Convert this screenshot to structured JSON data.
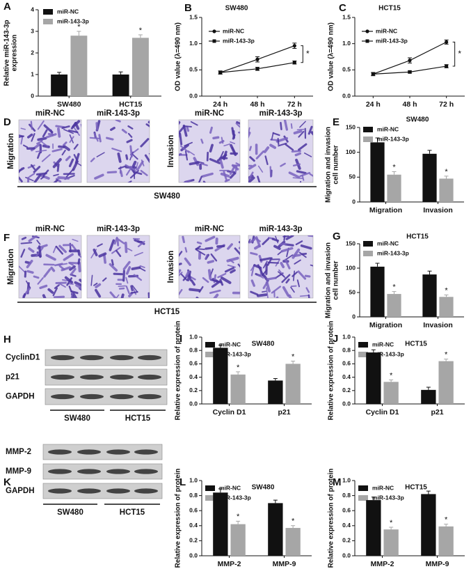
{
  "chart_data": [
    {
      "type": "bar",
      "panel": "A",
      "ylabel": [
        "Relative miR-143-3p",
        "expression"
      ],
      "categories": [
        "SW480",
        "HCT15"
      ],
      "series": [
        {
          "name": "miR-NC",
          "color": "#111111",
          "values": [
            1.0,
            1.0
          ],
          "errors": [
            0.1,
            0.12
          ]
        },
        {
          "name": "miR-143-3p",
          "color": "#a6a6a6",
          "values": [
            2.8,
            2.7
          ],
          "errors": [
            0.2,
            0.14
          ],
          "significance": [
            "*",
            "*"
          ]
        }
      ],
      "ylim": [
        0,
        4
      ],
      "yticks": [
        0,
        1,
        2,
        3,
        4
      ]
    },
    {
      "type": "line",
      "panel": "B",
      "title": "SW480",
      "ylabel": [
        "OD value (λ=490 nm)"
      ],
      "categories": [
        "24 h",
        "48 h",
        "72 h"
      ],
      "series": [
        {
          "name": "miR-NC",
          "color": "#111111",
          "values": [
            0.45,
            0.7,
            0.96
          ],
          "errors": [
            0.03,
            0.05,
            0.05
          ]
        },
        {
          "name": "miR-143-3p",
          "color": "#111111",
          "values": [
            0.45,
            0.52,
            0.64
          ],
          "errors": [
            0.03,
            0.03,
            0.03
          ]
        }
      ],
      "annotation": "*",
      "ylim": [
        0,
        1.5
      ],
      "yticks": [
        {
          "value": 0,
          "label": "0.0"
        },
        0.5,
        {
          "value": 1,
          "label": "1.0"
        },
        1.5
      ]
    },
    {
      "type": "line",
      "panel": "C",
      "title": "HCT15",
      "ylabel": [
        "OD value (λ=490 nm)"
      ],
      "categories": [
        "24 h",
        "48 h",
        "72 h"
      ],
      "series": [
        {
          "name": "miR-NC",
          "color": "#111111",
          "values": [
            0.42,
            0.68,
            1.03
          ],
          "errors": [
            0.03,
            0.05,
            0.04
          ]
        },
        {
          "name": "miR-143-3p",
          "color": "#111111",
          "values": [
            0.42,
            0.46,
            0.57
          ],
          "errors": [
            0.03,
            0.02,
            0.03
          ]
        }
      ],
      "annotation": "*",
      "ylim": [
        0,
        1.5
      ],
      "yticks": [
        {
          "value": 0,
          "label": "0.0"
        },
        0.5,
        {
          "value": 1,
          "label": "1.0"
        },
        1.5
      ]
    },
    {
      "type": "bar",
      "panel": "E",
      "title": "SW480",
      "ylabel": [
        "Migration and invasion",
        "cell number"
      ],
      "categories": [
        "Migration",
        "Invasion"
      ],
      "series": [
        {
          "name": "miR-NC",
          "color": "#111111",
          "values": [
            120,
            97
          ],
          "errors": [
            9,
            7
          ]
        },
        {
          "name": "miR-143-3p",
          "color": "#a6a6a6",
          "values": [
            55,
            47
          ],
          "errors": [
            6,
            5
          ],
          "significance": [
            "*",
            "*"
          ]
        }
      ],
      "ylim": [
        0,
        150
      ],
      "yticks": [
        0,
        50,
        100,
        150
      ]
    },
    {
      "type": "bar",
      "panel": "G",
      "title": "HCT15",
      "ylabel": [
        "Migration and invasion",
        "cell number"
      ],
      "categories": [
        "Migration",
        "Invasion"
      ],
      "series": [
        {
          "name": "miR-NC",
          "color": "#111111",
          "values": [
            103,
            87
          ],
          "errors": [
            7,
            7
          ]
        },
        {
          "name": "miR-143-3p",
          "color": "#a6a6a6",
          "values": [
            47,
            41
          ],
          "errors": [
            5,
            4
          ],
          "significance": [
            "*",
            "*"
          ]
        }
      ],
      "ylim": [
        0,
        150
      ],
      "yticks": [
        0,
        50,
        100,
        150
      ]
    },
    {
      "type": "bar",
      "panel": "I",
      "title": "SW480",
      "ylabel": [
        "Relative expression of protein"
      ],
      "categories": [
        "Cyclin D1",
        "p21"
      ],
      "series": [
        {
          "name": "miR-NC",
          "color": "#111111",
          "values": [
            0.84,
            0.35
          ],
          "errors": [
            0.04,
            0.03
          ]
        },
        {
          "name": "miR-143-3p",
          "color": "#a6a6a6",
          "values": [
            0.44,
            0.6
          ],
          "errors": [
            0.04,
            0.04
          ],
          "significance": [
            "*",
            "*"
          ]
        }
      ],
      "ylim": [
        0,
        1
      ],
      "yticks": [
        {
          "value": 0,
          "label": "0.0"
        },
        0.2,
        0.4,
        0.6,
        0.8,
        {
          "value": 1,
          "label": "1.0"
        }
      ]
    },
    {
      "type": "bar",
      "panel": "J",
      "title": "HCT15",
      "ylabel": [
        "Relative expression of protein"
      ],
      "categories": [
        "Cyclin D1",
        "p21"
      ],
      "series": [
        {
          "name": "miR-NC",
          "color": "#111111",
          "values": [
            0.77,
            0.21
          ],
          "errors": [
            0.04,
            0.04
          ]
        },
        {
          "name": "miR-143-3p",
          "color": "#a6a6a6",
          "values": [
            0.33,
            0.64
          ],
          "errors": [
            0.03,
            0.03
          ],
          "significance": [
            "*",
            "*"
          ]
        }
      ],
      "ylim": [
        0,
        1
      ],
      "yticks": [
        {
          "value": 0,
          "label": "0.0"
        },
        0.2,
        0.4,
        0.6,
        0.8,
        {
          "value": 1,
          "label": "1.0"
        }
      ]
    },
    {
      "type": "bar",
      "panel": "L",
      "title": "SW480",
      "ylabel": [
        "Relative expression of protein"
      ],
      "categories": [
        "MMP-2",
        "MMP-9"
      ],
      "series": [
        {
          "name": "miR-NC",
          "color": "#111111",
          "values": [
            0.84,
            0.7
          ],
          "errors": [
            0.05,
            0.04
          ]
        },
        {
          "name": "miR-143-3p",
          "color": "#a6a6a6",
          "values": [
            0.42,
            0.37
          ],
          "errors": [
            0.04,
            0.03
          ],
          "significance": [
            "*",
            "*"
          ]
        }
      ],
      "ylim": [
        0,
        1
      ],
      "yticks": [
        {
          "value": 0,
          "label": "0.0"
        },
        0.2,
        0.4,
        0.6,
        0.8,
        {
          "value": 1,
          "label": "1.0"
        }
      ]
    },
    {
      "type": "bar",
      "panel": "M",
      "title": "HCT15",
      "ylabel": [
        "Relative expression of protein"
      ],
      "categories": [
        "MMP-2",
        "MMP-9"
      ],
      "series": [
        {
          "name": "miR-NC",
          "color": "#111111",
          "values": [
            0.74,
            0.82
          ],
          "errors": [
            0.04,
            0.04
          ]
        },
        {
          "name": "miR-143-3p",
          "color": "#a6a6a6",
          "values": [
            0.35,
            0.39
          ],
          "errors": [
            0.03,
            0.03
          ],
          "significance": [
            "*",
            "*"
          ]
        }
      ],
      "ylim": [
        0,
        1
      ],
      "yticks": [
        {
          "value": 0,
          "label": "0.0"
        },
        0.2,
        0.4,
        0.6,
        0.8,
        {
          "value": 1,
          "label": "1.0"
        }
      ]
    }
  ],
  "panels": [
    {
      "label": "D",
      "columns": [
        "miR-NC",
        "miR-143-3p",
        "miR-NC",
        "miR-143-3p"
      ],
      "rows": [
        "Migration",
        "Invasion"
      ],
      "group": "SW480"
    },
    {
      "label": "F",
      "columns": [
        "miR-NC",
        "miR-143-3p",
        "miR-NC",
        "miR-143-3p"
      ],
      "rows": [
        "Migration",
        "Invasion"
      ],
      "group": "HCT15"
    }
  ],
  "blots": [
    {
      "label": "H",
      "rows": [
        "CyclinD1",
        "p21",
        "GAPDH"
      ],
      "groups": [
        "SW480",
        "HCT15"
      ]
    },
    {
      "label": "K",
      "rows": [
        "MMP-2",
        "MMP-9",
        "GAPDH"
      ],
      "groups": [
        "SW480",
        "HCT15"
      ]
    }
  ]
}
